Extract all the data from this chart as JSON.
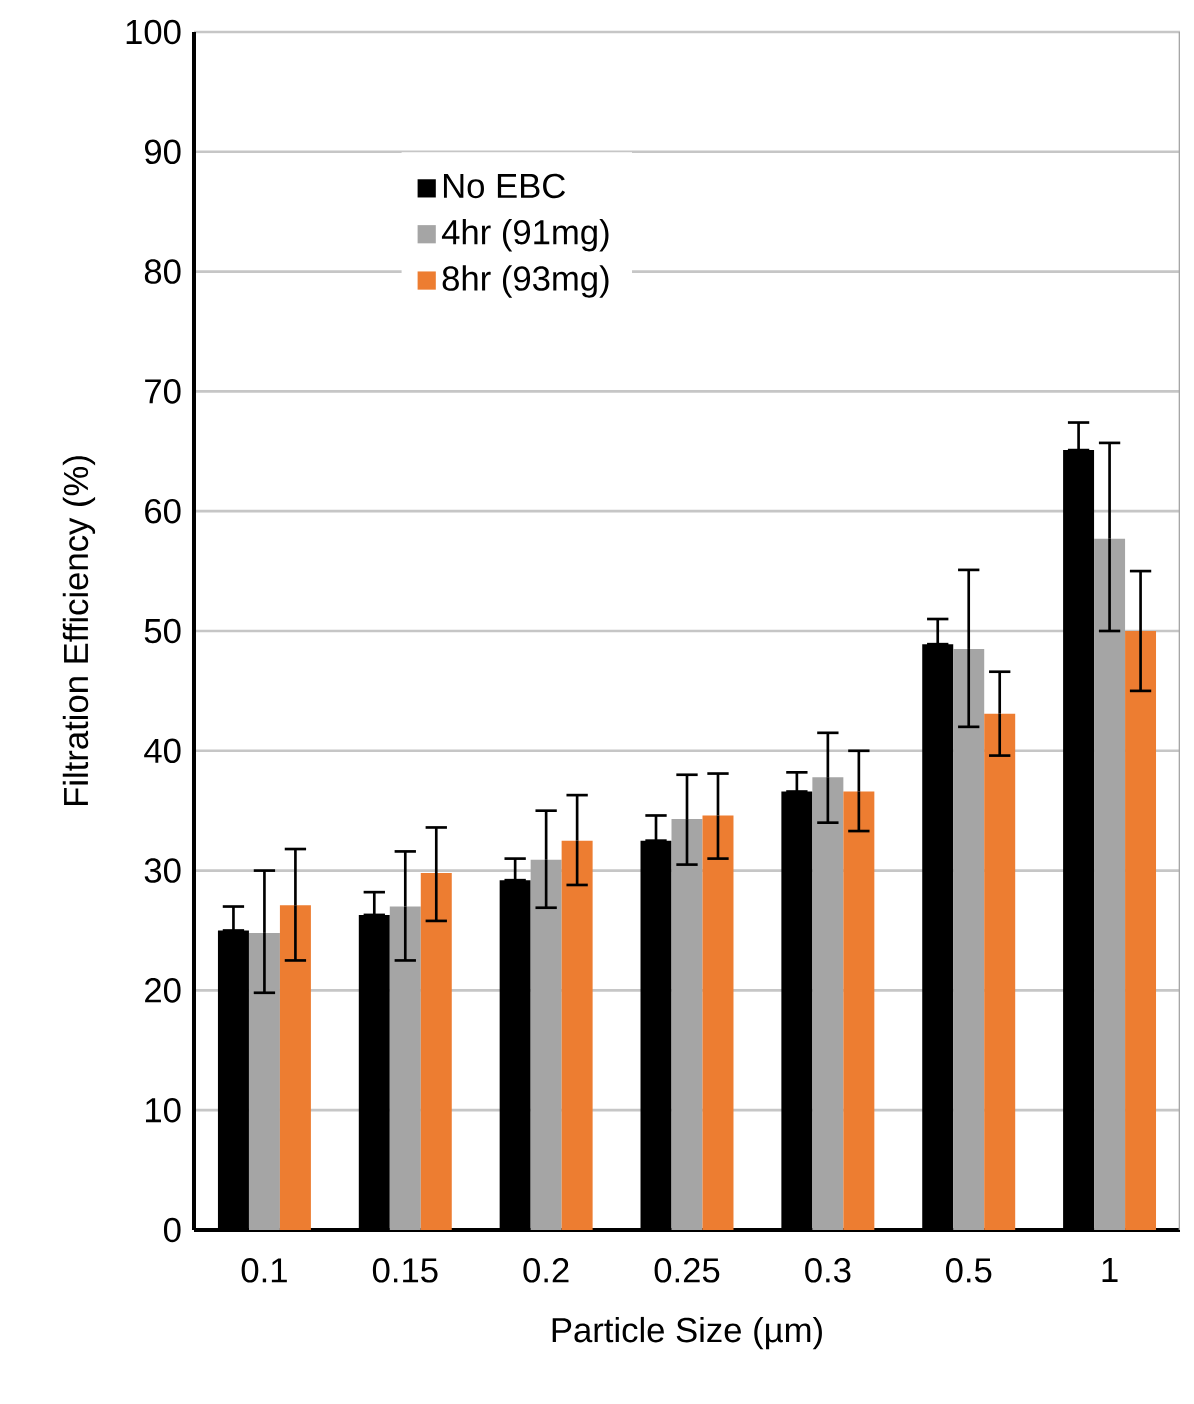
{
  "chart_data": {
    "type": "bar",
    "xlabel": "Particle Size (µm)",
    "ylabel": "Filtration Efficiency (%)",
    "categories": [
      "0.1",
      "0.15",
      "0.2",
      "0.25",
      "0.3",
      "0.5",
      "1"
    ],
    "series": [
      {
        "name": "No EBC",
        "color": "#000000",
        "values": [
          25,
          26.3,
          29.2,
          32.5,
          36.6,
          48.9,
          65.1
        ],
        "errors": [
          [
            25,
            27
          ],
          [
            26.3,
            28.2
          ],
          [
            29.2,
            31
          ],
          [
            32.5,
            34.6
          ],
          [
            36.6,
            38.2
          ],
          [
            48.9,
            51
          ],
          [
            65.1,
            67.4
          ]
        ]
      },
      {
        "name": "4hr (91mg)",
        "color": "#a5a5a5",
        "values": [
          24.8,
          27,
          30.9,
          34.3,
          37.8,
          48.5,
          57.7
        ],
        "errors": [
          [
            19.8,
            30
          ],
          [
            22.5,
            31.6
          ],
          [
            26.9,
            35
          ],
          [
            30.5,
            38
          ],
          [
            34,
            41.5
          ],
          [
            42,
            55.1
          ],
          [
            50,
            65.7
          ]
        ]
      },
      {
        "name": "8hr (93mg)",
        "color": "#ed7d31",
        "values": [
          27.1,
          29.8,
          32.5,
          34.6,
          36.6,
          43.1,
          50
        ],
        "errors": [
          [
            22.5,
            31.8
          ],
          [
            25.8,
            33.6
          ],
          [
            28.8,
            36.3
          ],
          [
            31,
            38.1
          ],
          [
            33.3,
            40
          ],
          [
            39.6,
            46.6
          ],
          [
            45,
            55
          ]
        ]
      }
    ],
    "ylim": [
      0,
      100
    ],
    "yticks": [
      0,
      10,
      20,
      30,
      40,
      50,
      60,
      70,
      80,
      90,
      100
    ],
    "grid": "y",
    "legend": "top left"
  }
}
